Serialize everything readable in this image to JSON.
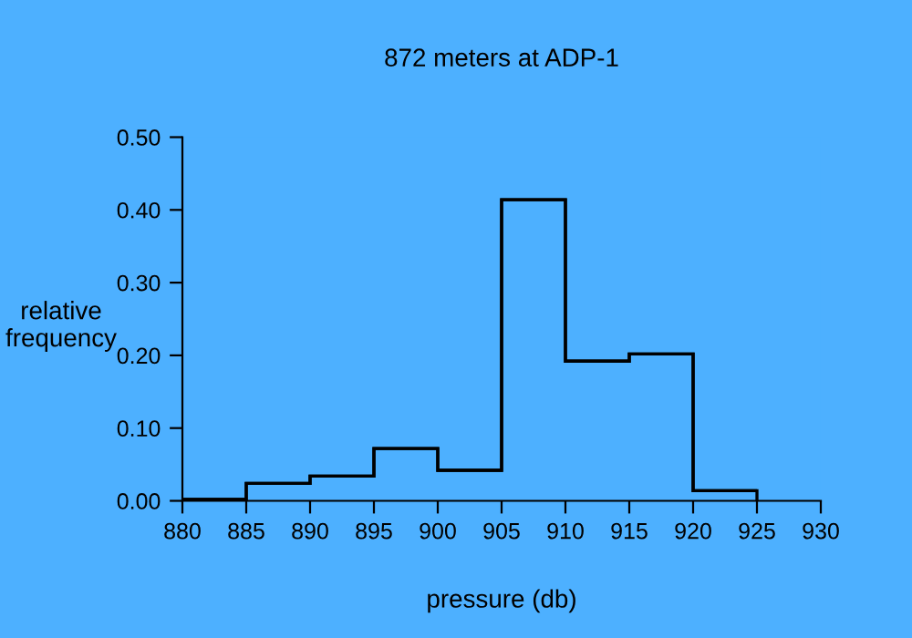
{
  "chart_data": {
    "type": "histogram",
    "title": "872 meters at ADP-1",
    "xlabel": "pressure (db)",
    "ylabel": "relative\nfrequency",
    "bins": [
      880,
      885,
      890,
      895,
      900,
      905,
      910,
      915,
      920,
      925
    ],
    "values": [
      0.002,
      0.024,
      0.034,
      0.072,
      0.042,
      0.414,
      0.192,
      0.202,
      0.014
    ],
    "color": "#000000",
    "xlim": [
      880,
      930
    ],
    "xticks": [
      880,
      885,
      890,
      895,
      900,
      905,
      910,
      915,
      920,
      925,
      930
    ],
    "ylim": [
      0,
      0.5
    ],
    "yticks": [
      {
        "value": 0,
        "label": "0.00"
      },
      {
        "value": 0.1,
        "label": "0.10"
      },
      {
        "value": 0.2,
        "label": "0.20"
      },
      {
        "value": 0.3,
        "label": "0.30"
      },
      {
        "value": 0.4,
        "label": "0.40"
      },
      {
        "value": 0.5,
        "label": "0.50"
      }
    ],
    "grid": false
  }
}
